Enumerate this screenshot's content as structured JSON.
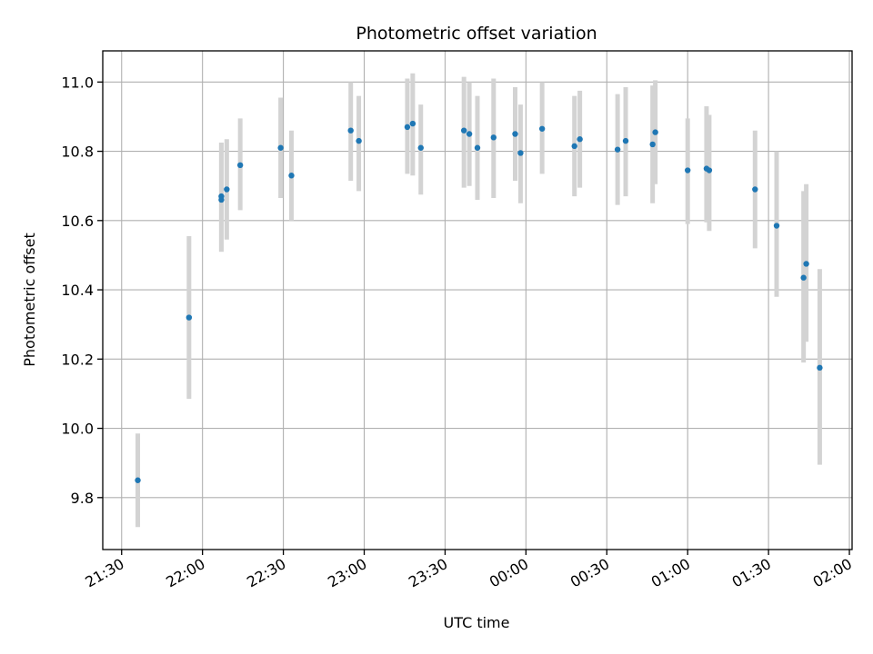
{
  "chart_data": {
    "type": "scatter",
    "title": "Photometric offset variation",
    "xlabel": "UTC time",
    "ylabel": "Photometric offset",
    "x_unit": "UTC time (HH:MM, spans midnight)",
    "xlim": [
      "21:23",
      "02:01"
    ],
    "ylim": [
      9.65,
      11.09
    ],
    "x_ticks": [
      "21:30",
      "22:00",
      "22:30",
      "23:00",
      "23:30",
      "00:00",
      "00:30",
      "01:00",
      "01:30",
      "02:00"
    ],
    "y_ticks": [
      9.8,
      10.0,
      10.2,
      10.4,
      10.6,
      10.8,
      11.0
    ],
    "grid": true,
    "legend": "none",
    "point_color": "#1f77b4",
    "errorbar_color": "#d3d3d3",
    "series": [
      {
        "x": [
          "21:36",
          "21:55",
          "22:07",
          "22:07",
          "22:09",
          "22:14",
          "22:29",
          "22:33",
          "22:55",
          "22:58",
          "23:16",
          "23:18",
          "23:21",
          "23:37",
          "23:39",
          "23:42",
          "23:48",
          "23:56",
          "23:58",
          "00:06",
          "00:18",
          "00:20",
          "00:34",
          "00:37",
          "00:47",
          "00:48",
          "01:00",
          "01:07",
          "01:08",
          "01:25",
          "01:33",
          "01:43",
          "01:44",
          "01:49"
        ],
        "y": [
          9.85,
          10.32,
          10.67,
          10.66,
          10.69,
          10.76,
          10.81,
          10.73,
          10.86,
          10.83,
          10.87,
          10.88,
          10.81,
          10.86,
          10.85,
          10.81,
          10.84,
          10.85,
          10.795,
          10.865,
          10.815,
          10.835,
          10.805,
          10.83,
          10.82,
          10.855,
          10.745,
          10.75,
          10.745,
          10.69,
          10.585,
          10.435,
          10.475,
          10.175
        ],
        "yerr_low": [
          9.715,
          10.085,
          10.51,
          10.51,
          10.545,
          10.63,
          10.665,
          10.6,
          10.715,
          10.685,
          10.735,
          10.73,
          10.675,
          10.695,
          10.7,
          10.66,
          10.665,
          10.715,
          10.65,
          10.735,
          10.67,
          10.695,
          10.645,
          10.67,
          10.65,
          10.705,
          10.59,
          10.595,
          10.57,
          10.52,
          10.38,
          10.19,
          10.25,
          9.895
        ],
        "yerr_high": [
          9.985,
          10.555,
          10.825,
          10.825,
          10.835,
          10.895,
          10.955,
          10.86,
          11.0,
          10.96,
          11.01,
          11.025,
          10.935,
          11.015,
          11.0,
          10.96,
          11.01,
          10.985,
          10.935,
          11.0,
          10.96,
          10.975,
          10.965,
          10.985,
          10.99,
          11.005,
          10.895,
          10.93,
          10.905,
          10.86,
          10.8,
          10.685,
          10.705,
          10.46
        ]
      }
    ]
  }
}
